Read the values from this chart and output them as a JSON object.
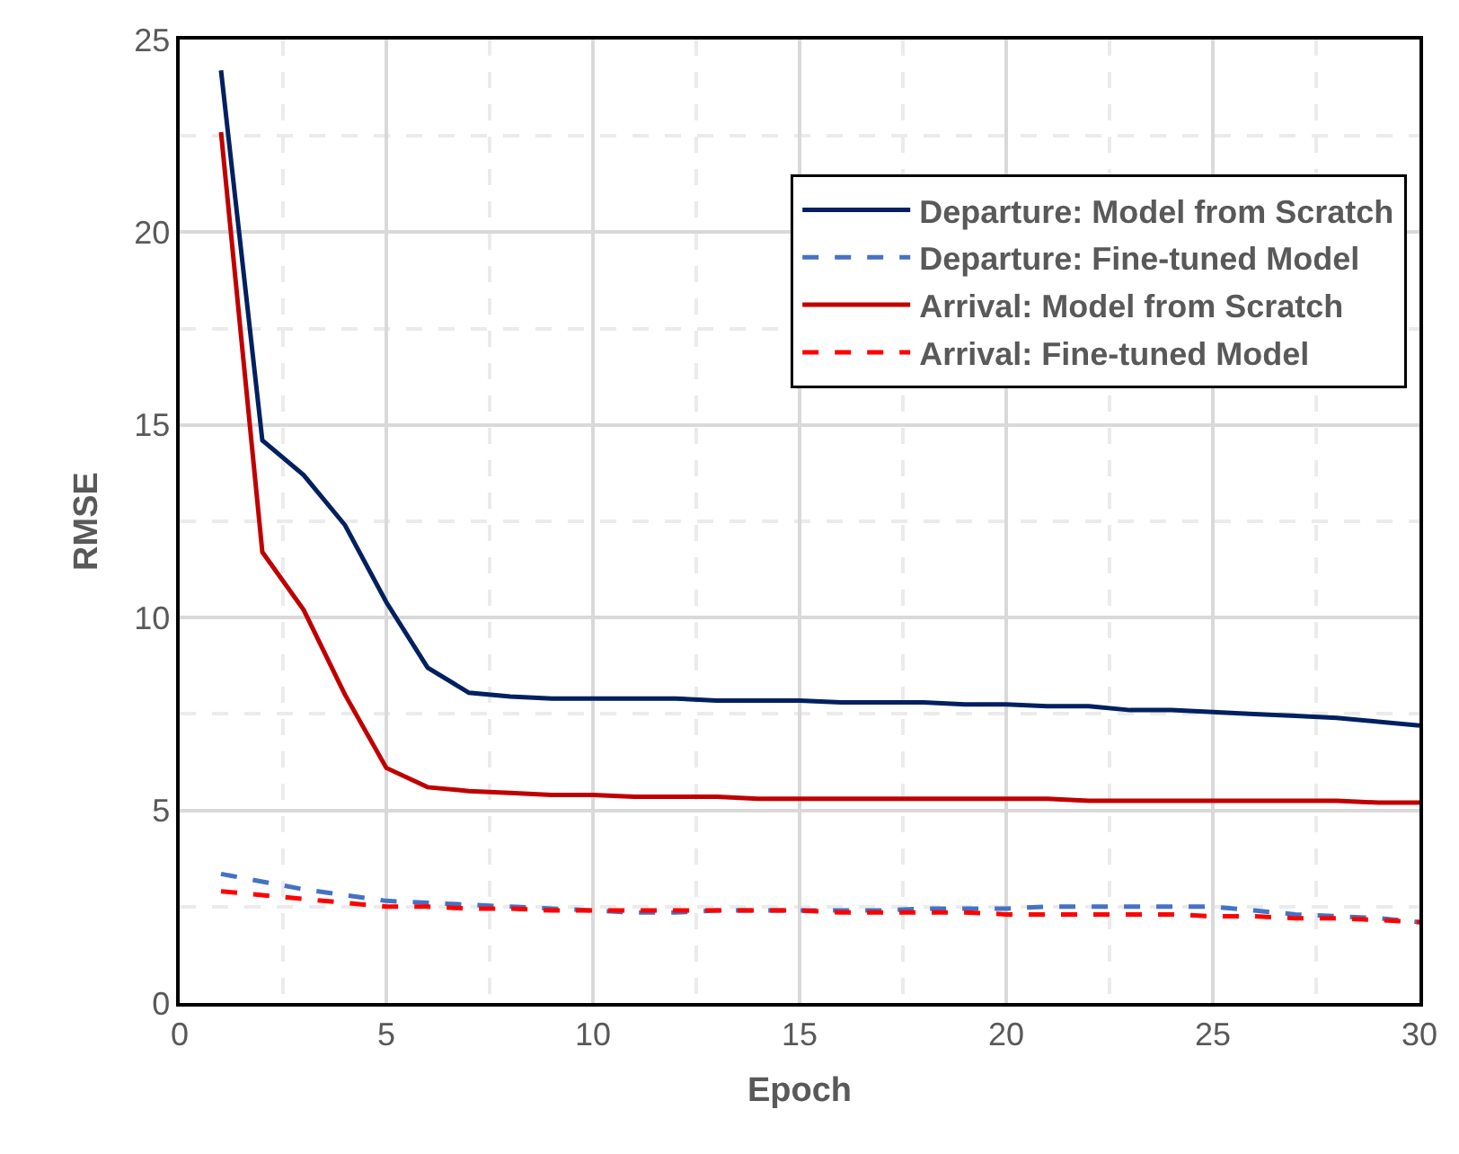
{
  "chart_data": {
    "type": "line",
    "xlabel": "Epoch",
    "ylabel": "RMSE",
    "x": [
      1,
      2,
      3,
      4,
      5,
      6,
      7,
      8,
      9,
      10,
      11,
      12,
      13,
      14,
      15,
      16,
      17,
      18,
      19,
      20,
      21,
      22,
      23,
      24,
      25,
      26,
      27,
      28,
      29,
      30
    ],
    "xlim": [
      0,
      30
    ],
    "xticks": [
      0,
      5,
      10,
      15,
      20,
      25,
      30
    ],
    "ylim": [
      0,
      25
    ],
    "yticks": [
      0,
      5,
      10,
      15,
      20,
      25
    ],
    "grid": true,
    "legend": "top right",
    "series": [
      {
        "name": "Departure: Model from Scratch",
        "color": "#002060",
        "line_style": "solid",
        "values": [
          24.2,
          14.6,
          13.7,
          12.4,
          10.4,
          8.7,
          8.05,
          7.95,
          7.9,
          7.9,
          7.9,
          7.9,
          7.85,
          7.85,
          7.85,
          7.8,
          7.8,
          7.8,
          7.75,
          7.75,
          7.7,
          7.7,
          7.6,
          7.6,
          7.55,
          7.5,
          7.45,
          7.4,
          7.3,
          7.2
        ]
      },
      {
        "name": "Departure: Fine-tuned Model",
        "color": "#4472c4",
        "line_style": "dashed",
        "values": [
          3.35,
          3.15,
          2.95,
          2.8,
          2.65,
          2.6,
          2.55,
          2.5,
          2.45,
          2.4,
          2.35,
          2.35,
          2.4,
          2.4,
          2.4,
          2.4,
          2.4,
          2.45,
          2.45,
          2.45,
          2.5,
          2.5,
          2.5,
          2.5,
          2.5,
          2.4,
          2.3,
          2.25,
          2.2,
          2.1
        ]
      },
      {
        "name": "Arrival: Model from Scratch",
        "color": "#c00000",
        "line_style": "solid",
        "values": [
          22.6,
          11.7,
          10.2,
          8.0,
          6.1,
          5.6,
          5.5,
          5.45,
          5.4,
          5.4,
          5.35,
          5.35,
          5.35,
          5.3,
          5.3,
          5.3,
          5.3,
          5.3,
          5.3,
          5.3,
          5.3,
          5.25,
          5.25,
          5.25,
          5.25,
          5.25,
          5.25,
          5.25,
          5.2,
          5.2
        ]
      },
      {
        "name": "Arrival: Fine-tuned Model",
        "color": "#ff0000",
        "line_style": "dashed",
        "values": [
          2.9,
          2.8,
          2.7,
          2.6,
          2.5,
          2.5,
          2.45,
          2.45,
          2.4,
          2.4,
          2.4,
          2.4,
          2.4,
          2.4,
          2.4,
          2.35,
          2.35,
          2.35,
          2.35,
          2.3,
          2.3,
          2.3,
          2.3,
          2.3,
          2.25,
          2.25,
          2.2,
          2.2,
          2.15,
          2.1
        ]
      }
    ]
  }
}
